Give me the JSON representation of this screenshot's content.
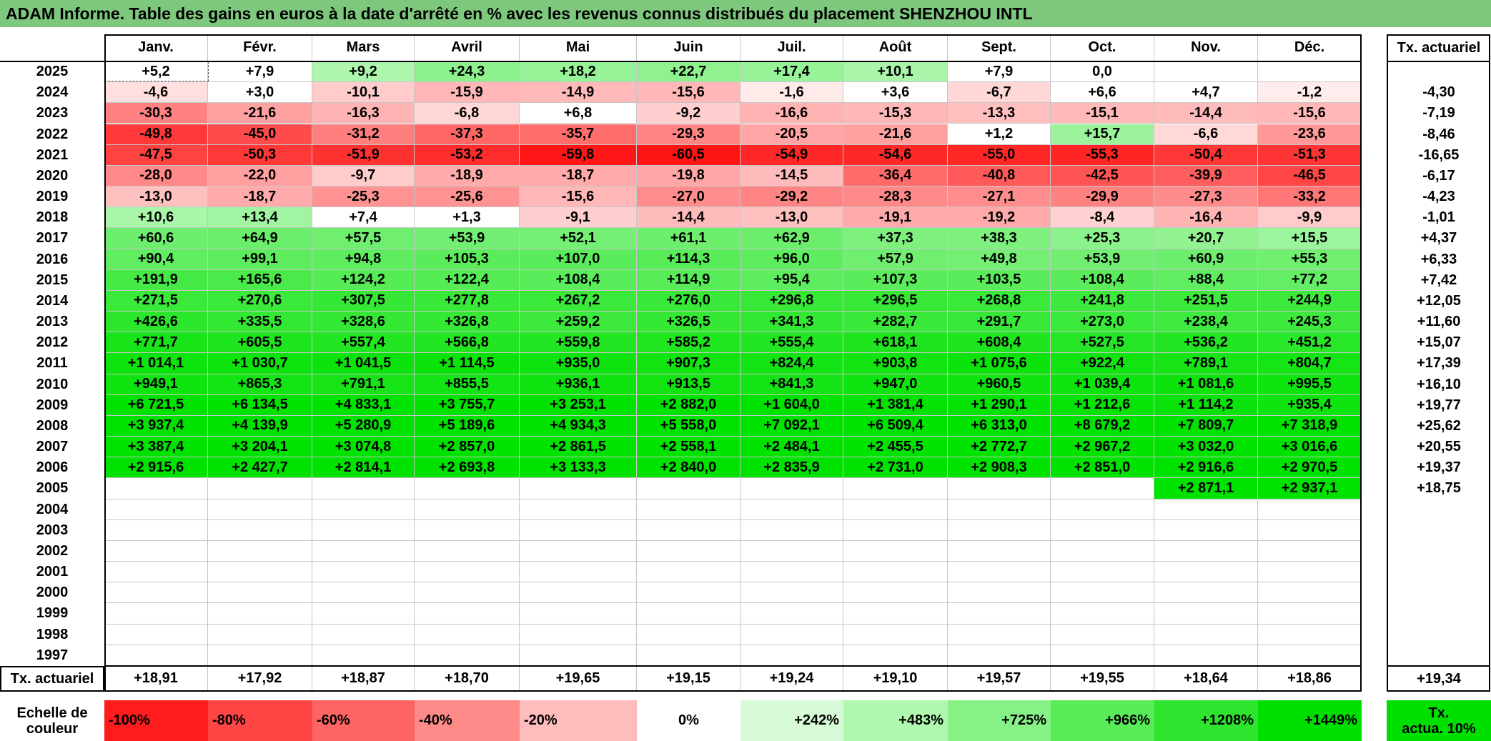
{
  "title": "ADAM Informe. Table des gains en euros à la date d'arrêté en % avec les revenus connus distribués du placement SHENZHOU INTL",
  "months": [
    "Janv.",
    "Févr.",
    "Mars",
    "Avril",
    "Mai",
    "Juin",
    "Juil.",
    "Août",
    "Sept.",
    "Oct.",
    "Nov.",
    "Déc."
  ],
  "rate_header": "Tx. actuariel",
  "rows": [
    {
      "year": "2025",
      "values": [
        "+5,2",
        "+7,9",
        "+9,2",
        "+24,3",
        "+18,2",
        "+22,7",
        "+17,4",
        "+10,1",
        "+7,9",
        "0,0",
        "",
        ""
      ],
      "rate": ""
    },
    {
      "year": "2024",
      "values": [
        "-4,6",
        "+3,0",
        "-10,1",
        "-15,9",
        "-14,9",
        "-15,6",
        "-1,6",
        "+3,6",
        "-6,7",
        "+6,6",
        "+4,7",
        "-1,2"
      ],
      "rate": "-4,30"
    },
    {
      "year": "2023",
      "values": [
        "-30,3",
        "-21,6",
        "-16,3",
        "-6,8",
        "+6,8",
        "-9,2",
        "-16,6",
        "-15,3",
        "-13,3",
        "-15,1",
        "-14,4",
        "-15,6"
      ],
      "rate": "-7,19"
    },
    {
      "year": "2022",
      "values": [
        "-49,8",
        "-45,0",
        "-31,2",
        "-37,3",
        "-35,7",
        "-29,3",
        "-20,5",
        "-21,6",
        "+1,2",
        "+15,7",
        "-6,6",
        "-23,6"
      ],
      "rate": "-8,46"
    },
    {
      "year": "2021",
      "values": [
        "-47,5",
        "-50,3",
        "-51,9",
        "-53,2",
        "-59,8",
        "-60,5",
        "-54,9",
        "-54,6",
        "-55,0",
        "-55,3",
        "-50,4",
        "-51,3"
      ],
      "rate": "-16,65"
    },
    {
      "year": "2020",
      "values": [
        "-28,0",
        "-22,0",
        "-9,7",
        "-18,9",
        "-18,7",
        "-19,8",
        "-14,5",
        "-36,4",
        "-40,8",
        "-42,5",
        "-39,9",
        "-46,5"
      ],
      "rate": "-6,17"
    },
    {
      "year": "2019",
      "values": [
        "-13,0",
        "-18,7",
        "-25,3",
        "-25,6",
        "-15,6",
        "-27,0",
        "-29,2",
        "-28,3",
        "-27,1",
        "-29,9",
        "-27,3",
        "-33,2"
      ],
      "rate": "-4,23"
    },
    {
      "year": "2018",
      "values": [
        "+10,6",
        "+13,4",
        "+7,4",
        "+1,3",
        "-9,1",
        "-14,4",
        "-13,0",
        "-19,1",
        "-19,2",
        "-8,4",
        "-16,4",
        "-9,9"
      ],
      "rate": "-1,01"
    },
    {
      "year": "2017",
      "values": [
        "+60,6",
        "+64,9",
        "+57,5",
        "+53,9",
        "+52,1",
        "+61,1",
        "+62,9",
        "+37,3",
        "+38,3",
        "+25,3",
        "+20,7",
        "+15,5"
      ],
      "rate": "+4,37"
    },
    {
      "year": "2016",
      "values": [
        "+90,4",
        "+99,1",
        "+94,8",
        "+105,3",
        "+107,0",
        "+114,3",
        "+96,0",
        "+57,9",
        "+49,8",
        "+53,9",
        "+60,9",
        "+55,3"
      ],
      "rate": "+6,33"
    },
    {
      "year": "2015",
      "values": [
        "+191,9",
        "+165,6",
        "+124,2",
        "+122,4",
        "+108,4",
        "+114,9",
        "+95,4",
        "+107,3",
        "+103,5",
        "+108,4",
        "+88,4",
        "+77,2"
      ],
      "rate": "+7,42"
    },
    {
      "year": "2014",
      "values": [
        "+271,5",
        "+270,6",
        "+307,5",
        "+277,8",
        "+267,2",
        "+276,0",
        "+296,8",
        "+296,5",
        "+268,8",
        "+241,8",
        "+251,5",
        "+244,9"
      ],
      "rate": "+12,05"
    },
    {
      "year": "2013",
      "values": [
        "+426,6",
        "+335,5",
        "+328,6",
        "+326,8",
        "+259,2",
        "+326,5",
        "+341,3",
        "+282,7",
        "+291,7",
        "+273,0",
        "+238,4",
        "+245,3"
      ],
      "rate": "+11,60"
    },
    {
      "year": "2012",
      "values": [
        "+771,7",
        "+605,5",
        "+557,4",
        "+566,8",
        "+559,8",
        "+585,2",
        "+555,4",
        "+618,1",
        "+608,4",
        "+527,5",
        "+536,2",
        "+451,2"
      ],
      "rate": "+15,07"
    },
    {
      "year": "2011",
      "values": [
        "+1 014,1",
        "+1 030,7",
        "+1 041,5",
        "+1 114,5",
        "+935,0",
        "+907,3",
        "+824,4",
        "+903,8",
        "+1 075,6",
        "+922,4",
        "+789,1",
        "+804,7"
      ],
      "rate": "+17,39"
    },
    {
      "year": "2010",
      "values": [
        "+949,1",
        "+865,3",
        "+791,1",
        "+855,5",
        "+936,1",
        "+913,5",
        "+841,3",
        "+947,0",
        "+960,5",
        "+1 039,4",
        "+1 081,6",
        "+995,5"
      ],
      "rate": "+16,10"
    },
    {
      "year": "2009",
      "values": [
        "+6 721,5",
        "+6 134,5",
        "+4 833,1",
        "+3 755,7",
        "+3 253,1",
        "+2 882,0",
        "+1 604,0",
        "+1 381,4",
        "+1 290,1",
        "+1 212,6",
        "+1 114,2",
        "+935,4"
      ],
      "rate": "+19,77"
    },
    {
      "year": "2008",
      "values": [
        "+3 937,4",
        "+4 139,9",
        "+5 280,9",
        "+5 189,6",
        "+4 934,3",
        "+5 558,0",
        "+7 092,1",
        "+6 509,4",
        "+6 313,0",
        "+8 679,2",
        "+7 809,7",
        "+7 318,9"
      ],
      "rate": "+25,62"
    },
    {
      "year": "2007",
      "values": [
        "+3 387,4",
        "+3 204,1",
        "+3 074,8",
        "+2 857,0",
        "+2 861,5",
        "+2 558,1",
        "+2 484,1",
        "+2 455,5",
        "+2 772,7",
        "+2 967,2",
        "+3 032,0",
        "+3 016,6"
      ],
      "rate": "+20,55"
    },
    {
      "year": "2006",
      "values": [
        "+2 915,6",
        "+2 427,7",
        "+2 814,1",
        "+2 693,8",
        "+3 133,3",
        "+2 840,0",
        "+2 835,9",
        "+2 731,0",
        "+2 908,3",
        "+2 851,0",
        "+2 916,6",
        "+2 970,5"
      ],
      "rate": "+19,37"
    },
    {
      "year": "2005",
      "values": [
        "",
        "",
        "",
        "",
        "",
        "",
        "",
        "",
        "",
        "",
        "+2 871,1",
        "+2 937,1"
      ],
      "rate": "+18,75"
    },
    {
      "year": "2004",
      "values": [
        "",
        "",
        "",
        "",
        "",
        "",
        "",
        "",
        "",
        "",
        "",
        ""
      ],
      "rate": ""
    },
    {
      "year": "2003",
      "values": [
        "",
        "",
        "",
        "",
        "",
        "",
        "",
        "",
        "",
        "",
        "",
        ""
      ],
      "rate": ""
    },
    {
      "year": "2002",
      "values": [
        "",
        "",
        "",
        "",
        "",
        "",
        "",
        "",
        "",
        "",
        "",
        ""
      ],
      "rate": ""
    },
    {
      "year": "2001",
      "values": [
        "",
        "",
        "",
        "",
        "",
        "",
        "",
        "",
        "",
        "",
        "",
        ""
      ],
      "rate": ""
    },
    {
      "year": "2000",
      "values": [
        "",
        "",
        "",
        "",
        "",
        "",
        "",
        "",
        "",
        "",
        "",
        ""
      ],
      "rate": ""
    },
    {
      "year": "1999",
      "values": [
        "",
        "",
        "",
        "",
        "",
        "",
        "",
        "",
        "",
        "",
        "",
        ""
      ],
      "rate": ""
    },
    {
      "year": "1998",
      "values": [
        "",
        "",
        "",
        "",
        "",
        "",
        "",
        "",
        "",
        "",
        "",
        ""
      ],
      "rate": ""
    },
    {
      "year": "1997",
      "values": [
        "",
        "",
        "",
        "",
        "",
        "",
        "",
        "",
        "",
        "",
        "",
        ""
      ],
      "rate": ""
    }
  ],
  "totals": {
    "label": "Tx. actuariel",
    "values": [
      "+18,91",
      "+17,92",
      "+18,87",
      "+18,70",
      "+19,65",
      "+19,15",
      "+19,24",
      "+19,10",
      "+19,57",
      "+19,55",
      "+18,64",
      "+18,86"
    ],
    "rate": "+19,34"
  },
  "scale": {
    "label": "Echelle de couleur",
    "label_line1": "Echelle de",
    "label_line2": "couleur",
    "items": [
      "-100%",
      "-80%",
      "-60%",
      "-40%",
      "-20%",
      "0%",
      "+242%",
      "+483%",
      "+725%",
      "+966%",
      "+1208%",
      "+1449%"
    ],
    "rate_label_line1": "Tx.",
    "rate_label_line2": "actua. 10%"
  },
  "colors": {
    "title_bg": "#7ec87e",
    "scale_neg": [
      "#ff1c1c",
      "#ff4444",
      "#ff6464",
      "#ff8a8a",
      "#ffbcbc"
    ],
    "scale_pos": [
      "#d7fbd7",
      "#b0f8b0",
      "#86f286",
      "#58ec58",
      "#2ee42e",
      "#00e000"
    ],
    "rate_10": "#00e000"
  }
}
